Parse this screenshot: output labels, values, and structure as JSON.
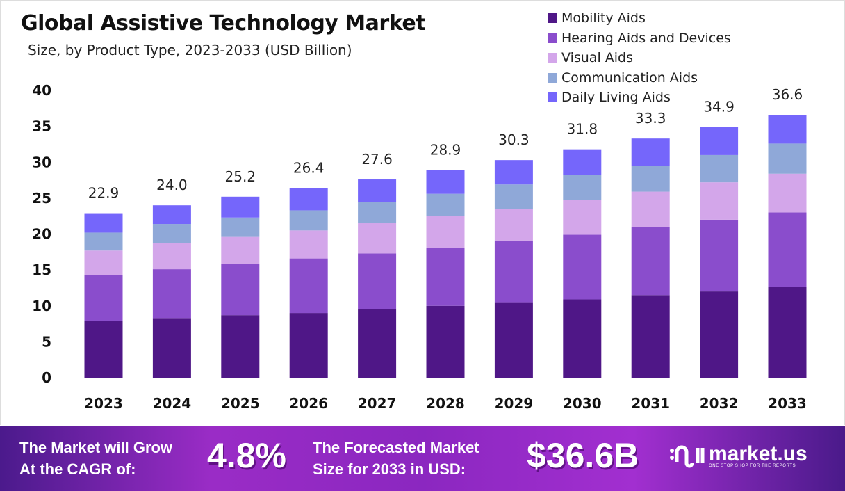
{
  "chart_data": {
    "type": "stacked-bar",
    "title": "Global Assistive Technology Market",
    "subtitle": "Size, by Product Type, 2023-2033 (USD Billion)",
    "categories": [
      "2023",
      "2024",
      "2025",
      "2026",
      "2027",
      "2028",
      "2029",
      "2030",
      "2031",
      "2032",
      "2033"
    ],
    "series": [
      {
        "name": "Mobility Aids",
        "color": "#4f1787",
        "values": [
          7.9,
          8.3,
          8.7,
          9.0,
          9.5,
          10.0,
          10.5,
          10.9,
          11.5,
          12.0,
          12.6
        ]
      },
      {
        "name": "Hearing Aids and Devices",
        "color": "#8a4dcc",
        "values": [
          6.4,
          6.8,
          7.1,
          7.6,
          7.8,
          8.1,
          8.6,
          9.0,
          9.5,
          10.0,
          10.4
        ]
      },
      {
        "name": "Visual Aids",
        "color": "#d3a6ea",
        "values": [
          3.4,
          3.6,
          3.8,
          3.9,
          4.2,
          4.4,
          4.4,
          4.8,
          4.9,
          5.2,
          5.4
        ]
      },
      {
        "name": "Communication Aids",
        "color": "#8fa8d8",
        "values": [
          2.5,
          2.7,
          2.7,
          2.8,
          3.0,
          3.1,
          3.4,
          3.5,
          3.6,
          3.8,
          4.2
        ]
      },
      {
        "name": "Daily Living Aids",
        "color": "#7566fb",
        "values": [
          2.7,
          2.6,
          2.9,
          3.1,
          3.1,
          3.3,
          3.4,
          3.6,
          3.8,
          3.9,
          4.0
        ]
      }
    ],
    "totals": [
      "22.9",
      "24.0",
      "25.2",
      "26.4",
      "27.6",
      "28.9",
      "30.3",
      "31.8",
      "33.3",
      "34.9",
      "36.6"
    ],
    "yticks": [
      "0",
      "5",
      "10",
      "15",
      "20",
      "25",
      "30",
      "35",
      "40"
    ],
    "ylim": [
      0,
      40
    ],
    "grid": false,
    "legend_position": "top-right"
  },
  "footer": {
    "cagr_label_1": "The Market will Grow",
    "cagr_label_2": "At the CAGR of:",
    "cagr_value": "4.8%",
    "forecast_label_1": "The Forecasted Market",
    "forecast_label_2": "Size for 2033 in USD:",
    "forecast_value": "$36.6B",
    "brand": "market.us",
    "brand_tagline": "ONE STOP SHOP FOR THE REPORTS"
  }
}
